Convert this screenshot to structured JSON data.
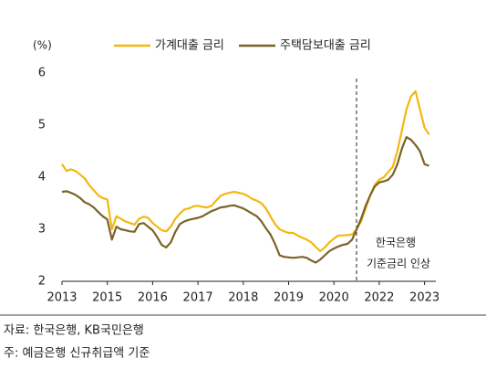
{
  "chart_data": {
    "type": "line",
    "y_label": "(%)",
    "categories": [
      "2013",
      null,
      null,
      null,
      null,
      null,
      null,
      null,
      null,
      null,
      "2015",
      null,
      null,
      null,
      null,
      null,
      null,
      null,
      null,
      null,
      "2016",
      null,
      null,
      null,
      null,
      null,
      null,
      null,
      null,
      null,
      "2017",
      null,
      null,
      null,
      null,
      null,
      null,
      null,
      null,
      null,
      "2018",
      null,
      null,
      null,
      null,
      null,
      null,
      null,
      null,
      null,
      "2019",
      null,
      null,
      null,
      null,
      null,
      null,
      null,
      null,
      null,
      "2020",
      null,
      null,
      null,
      null,
      null,
      null,
      null,
      null,
      null,
      "2022",
      null,
      null,
      null,
      null,
      null,
      null,
      null,
      null,
      null,
      "2023",
      null
    ],
    "series": [
      {
        "name": "가계대출 금리",
        "color": "#f2b80f",
        "values": [
          4.25,
          4.12,
          4.15,
          4.12,
          4.05,
          3.98,
          3.85,
          3.75,
          3.65,
          3.6,
          3.57,
          3.0,
          3.25,
          3.2,
          3.15,
          3.12,
          3.09,
          3.2,
          3.24,
          3.22,
          3.12,
          3.05,
          2.98,
          2.96,
          3.05,
          3.2,
          3.3,
          3.38,
          3.4,
          3.44,
          3.45,
          3.43,
          3.42,
          3.45,
          3.55,
          3.64,
          3.68,
          3.7,
          3.72,
          3.7,
          3.68,
          3.64,
          3.58,
          3.55,
          3.5,
          3.4,
          3.25,
          3.1,
          3.0,
          2.96,
          2.93,
          2.93,
          2.88,
          2.84,
          2.8,
          2.75,
          2.66,
          2.58,
          2.65,
          2.75,
          2.82,
          2.88,
          2.88,
          2.89,
          2.9,
          3.0,
          3.15,
          3.4,
          3.65,
          3.85,
          3.95,
          4.0,
          4.1,
          4.2,
          4.5,
          4.9,
          5.3,
          5.55,
          5.65,
          5.3,
          4.95,
          4.82
        ]
      },
      {
        "name": "주택담보대출  금리",
        "color": "#7b6326",
        "values": [
          3.72,
          3.73,
          3.7,
          3.66,
          3.6,
          3.52,
          3.48,
          3.42,
          3.33,
          3.25,
          3.19,
          2.8,
          3.05,
          3.0,
          2.98,
          2.96,
          2.95,
          3.1,
          3.12,
          3.05,
          2.98,
          2.85,
          2.7,
          2.65,
          2.75,
          2.95,
          3.1,
          3.15,
          3.18,
          3.2,
          3.22,
          3.25,
          3.3,
          3.35,
          3.38,
          3.42,
          3.43,
          3.45,
          3.46,
          3.43,
          3.4,
          3.35,
          3.3,
          3.25,
          3.15,
          3.02,
          2.9,
          2.72,
          2.5,
          2.47,
          2.46,
          2.45,
          2.46,
          2.47,
          2.45,
          2.4,
          2.36,
          2.42,
          2.5,
          2.58,
          2.63,
          2.67,
          2.7,
          2.72,
          2.8,
          3.0,
          3.2,
          3.45,
          3.65,
          3.82,
          3.9,
          3.92,
          3.95,
          4.05,
          4.25,
          4.55,
          4.77,
          4.72,
          4.62,
          4.5,
          4.25,
          4.22
        ]
      }
    ],
    "ylim": [
      2,
      6
    ],
    "yticks": [
      2,
      3,
      4,
      5,
      6
    ],
    "grid": false,
    "annotations": [
      "한국은행",
      "기준금리 인상"
    ],
    "notes": [
      "자료: 한국은행, KB국민은행",
      "주: 예금은행 신규취급액 기준"
    ]
  }
}
